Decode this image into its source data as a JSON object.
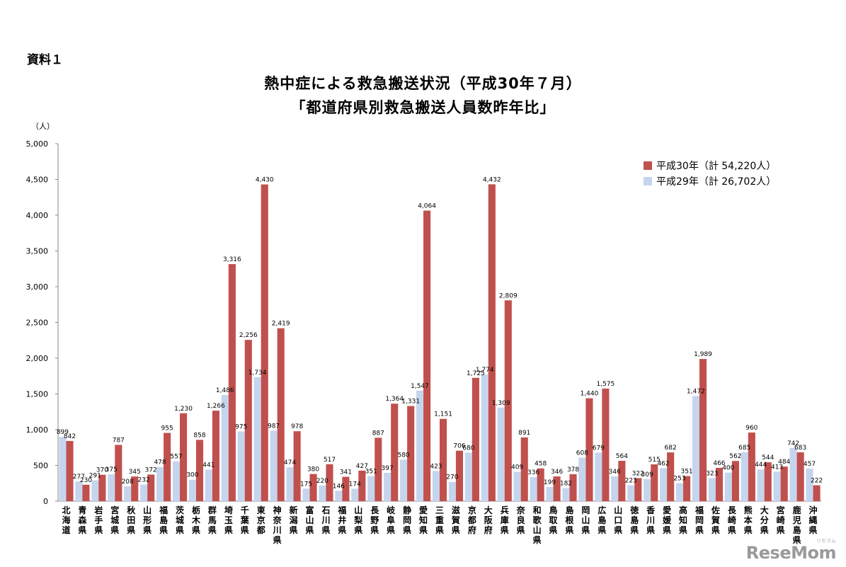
{
  "doc_label": "資料１",
  "chart_data": {
    "type": "bar",
    "title": "熱中症による救急搬送状況（平成30年７月）",
    "subtitle": "「都道府県別救急搬送人員数昨年比」",
    "ylabel": "（人）",
    "ylim": [
      0,
      5000
    ],
    "yticks": [
      "0",
      "500",
      "1,000",
      "1,500",
      "2,000",
      "2,500",
      "3,000",
      "3,500",
      "4,000",
      "4,500",
      "5,000"
    ],
    "grid": false,
    "legend_position": "top-right",
    "categories": [
      "北海道",
      "青森県",
      "岩手県",
      "宮城県",
      "秋田県",
      "山形県",
      "福島県",
      "茨城県",
      "栃木県",
      "群馬県",
      "埼玉県",
      "千葉県",
      "東京都",
      "神奈川県",
      "新潟県",
      "富山県",
      "石川県",
      "福井県",
      "山梨県",
      "長野県",
      "岐阜県",
      "静岡県",
      "愛知県",
      "三重県",
      "滋賀県",
      "京都府",
      "大阪府",
      "兵庫県",
      "奈良県",
      "和歌山県",
      "鳥取県",
      "島根県",
      "岡山県",
      "広島県",
      "山口県",
      "徳島県",
      "香川県",
      "愛媛県",
      "高知県",
      "福岡県",
      "佐賀県",
      "長崎県",
      "熊本県",
      "大分県",
      "宮崎県",
      "鹿児島県",
      "沖縄県"
    ],
    "series": [
      {
        "name": "平成29年（計 26,702人）",
        "color": "#c6d5ee",
        "values": [
          899,
          277,
          291,
          375,
          208,
          232,
          478,
          557,
          300,
          441,
          1486,
          975,
          1734,
          987,
          474,
          175,
          220,
          146,
          174,
          351,
          397,
          580,
          1547,
          423,
          270,
          680,
          1774,
          1309,
          409,
          336,
          199,
          182,
          608,
          679,
          346,
          223,
          309,
          462,
          253,
          1472,
          323,
          400,
          685,
          444,
          413,
          742,
          457
        ],
        "labels": [
          "899",
          "277",
          "291",
          "375",
          "208",
          "232",
          "478",
          "557",
          "300",
          "441",
          "1,486",
          "975",
          "1,734",
          "987",
          "474",
          "175",
          "220",
          "146",
          "174",
          "351",
          "397",
          "580",
          "1,547",
          "423",
          "270",
          "680",
          "1,774",
          "1,309",
          "409",
          "336",
          "199",
          "182",
          "608",
          "679",
          "346",
          "223",
          "309",
          "462",
          "253",
          "1,472",
          "323",
          "400",
          "685",
          "444",
          "413",
          "742",
          "457"
        ]
      },
      {
        "name": "平成30年（計 54,220人）",
        "color": "#c0504d",
        "values": [
          842,
          230,
          370,
          787,
          345,
          372,
          955,
          1230,
          858,
          1266,
          3316,
          2256,
          4430,
          2419,
          978,
          380,
          517,
          341,
          427,
          887,
          1364,
          1331,
          4064,
          1151,
          706,
          1725,
          4432,
          2809,
          891,
          458,
          346,
          378,
          1440,
          1575,
          564,
          322,
          515,
          682,
          351,
          1989,
          466,
          562,
          960,
          544,
          484,
          683,
          222
        ],
        "labels": [
          "842",
          "230",
          "370",
          "787",
          "345",
          "372",
          "955",
          "1,230",
          "858",
          "1,266",
          "3,316",
          "2,256",
          "4,430",
          "2,419",
          "978",
          "380",
          "517",
          "341",
          "427",
          "887",
          "1,364",
          "1,331",
          "4,064",
          "1,151",
          "706",
          "1,725",
          "4,432",
          "2,809",
          "891",
          "458",
          "346",
          "378",
          "1,440",
          "1,575",
          "564",
          "322",
          "515",
          "682",
          "351",
          "1,989",
          "466",
          "562",
          "960",
          "544",
          "484",
          "683",
          "222"
        ]
      }
    ]
  },
  "watermark": "ReseMom",
  "watermark_sub": "リセマム"
}
